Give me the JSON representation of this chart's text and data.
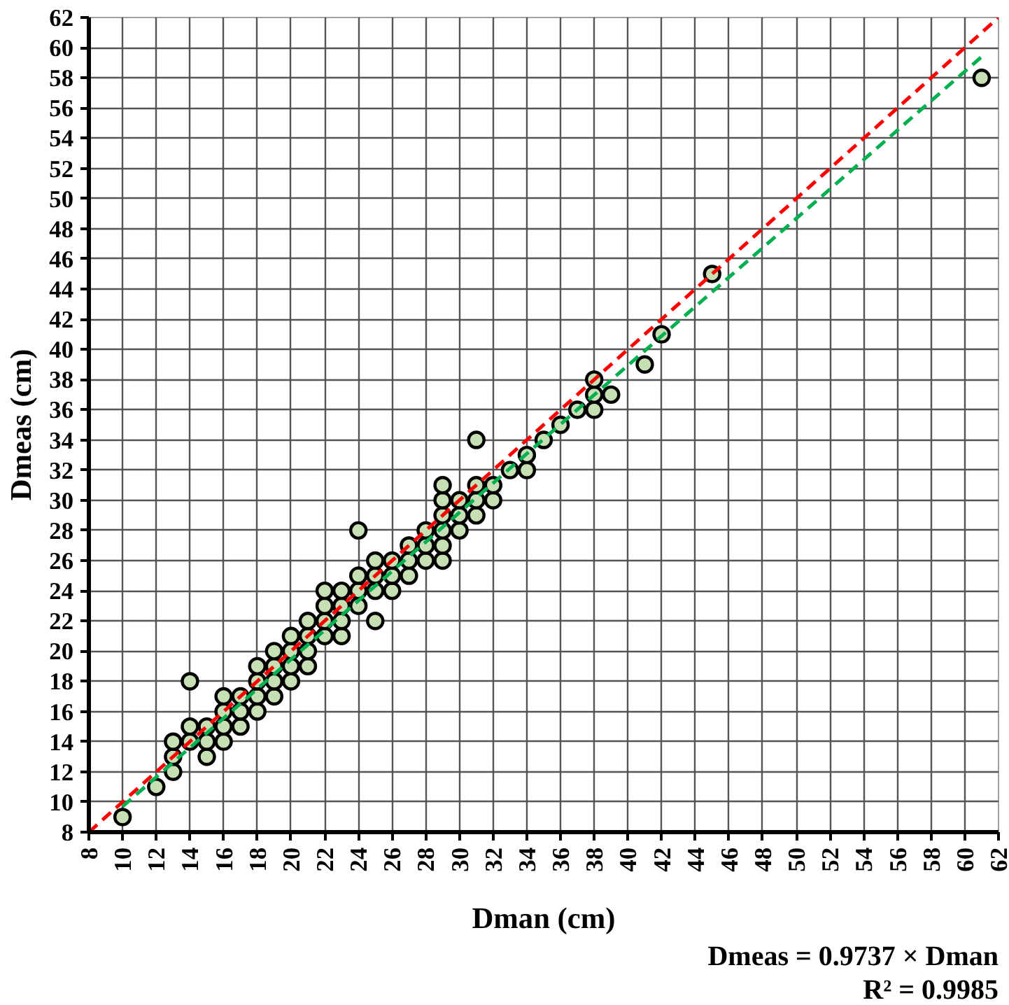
{
  "chart_data": {
    "type": "scatter",
    "xlabel": "Dman (cm)",
    "ylabel": "Dmeas (cm)",
    "annotations": [
      "Dmeas = 0.9737 × Dman",
      "R² = 0.9985"
    ],
    "xlim": [
      8,
      62
    ],
    "ylim": [
      8,
      62
    ],
    "xticks": [
      8,
      10,
      12,
      14,
      16,
      18,
      20,
      22,
      24,
      26,
      28,
      30,
      32,
      34,
      36,
      38,
      40,
      42,
      44,
      46,
      48,
      50,
      52,
      54,
      56,
      58,
      60,
      62
    ],
    "yticks": [
      8,
      10,
      12,
      14,
      16,
      18,
      20,
      22,
      24,
      26,
      28,
      30,
      32,
      34,
      36,
      38,
      40,
      42,
      44,
      46,
      48,
      50,
      52,
      54,
      56,
      58,
      60,
      62
    ],
    "grid": true,
    "marker": "circle",
    "series": [
      {
        "color": "#c6e0b4",
        "x": [
          10,
          12,
          13,
          13,
          13,
          14,
          14,
          14,
          15,
          15,
          15,
          16,
          16,
          16,
          16,
          17,
          17,
          17,
          18,
          18,
          18,
          18,
          19,
          19,
          19,
          19,
          20,
          20,
          20,
          20,
          21,
          21,
          21,
          21,
          22,
          22,
          22,
          22,
          23,
          23,
          23,
          23,
          24,
          24,
          24,
          24,
          25,
          25,
          25,
          25,
          26,
          26,
          26,
          27,
          27,
          27,
          28,
          28,
          28,
          29,
          29,
          29,
          29,
          29,
          29,
          30,
          30,
          30,
          31,
          31,
          31,
          31,
          32,
          32,
          33,
          34,
          34,
          35,
          36,
          37,
          38,
          38,
          38,
          39,
          41,
          42,
          45,
          61
        ],
        "values": [
          9,
          11,
          12,
          13,
          14,
          14,
          15,
          18,
          13,
          14,
          15,
          14,
          15,
          16,
          17,
          15,
          16,
          17,
          16,
          17,
          18,
          19,
          17,
          18,
          19,
          20,
          18,
          19,
          20,
          21,
          19,
          20,
          21,
          22,
          21,
          22,
          23,
          24,
          21,
          22,
          23,
          24,
          23,
          24,
          25,
          28,
          22,
          24,
          25,
          26,
          24,
          25,
          26,
          25,
          26,
          27,
          26,
          27,
          28,
          26,
          27,
          28,
          29,
          30,
          31,
          28,
          29,
          30,
          29,
          30,
          31,
          34,
          30,
          31,
          32,
          32,
          33,
          34,
          35,
          36,
          36,
          37,
          38,
          37,
          39,
          41,
          45,
          58
        ]
      },
      {
        "type": "line",
        "color": "#ff0000",
        "line_style": "dashed",
        "marker": "none",
        "x": [
          8,
          62
        ],
        "values": [
          8,
          62
        ]
      },
      {
        "type": "line",
        "color": "#00b050",
        "line_style": "dashed",
        "marker": "none",
        "x": [
          10,
          61
        ],
        "values": [
          9.7,
          59.4
        ]
      }
    ]
  }
}
